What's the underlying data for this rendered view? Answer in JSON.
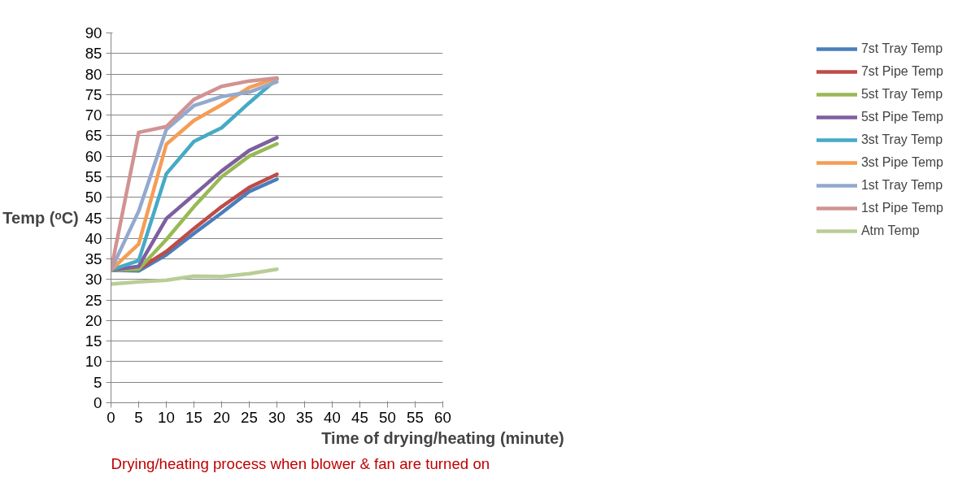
{
  "chart_data": {
    "type": "line",
    "xlabel": "Time of drying/heating (minute)",
    "ylabel": "Temp (ᵒC)",
    "annotations": [
      "Drying/heating process when blower & fan are turned on"
    ],
    "x": [
      0,
      5,
      10,
      15,
      20,
      25,
      30
    ],
    "series": [
      {
        "name": "7st Tray Temp",
        "color": "#4a7ebb",
        "values": [
          32.3,
          32.1,
          36,
          41.2,
          46.2,
          51.4,
          54.4
        ]
      },
      {
        "name": "7st Pipe Temp",
        "color": "#be4b48",
        "values": [
          32.3,
          32.5,
          36.8,
          42.4,
          47.7,
          52.4,
          55.6
        ]
      },
      {
        "name": "5st Tray Temp",
        "color": "#98b954",
        "values": [
          32.3,
          32.5,
          39.7,
          47.7,
          55,
          60,
          63
        ]
      },
      {
        "name": "5st Pipe Temp",
        "color": "#7d5fa0",
        "values": [
          32.3,
          33.2,
          44.8,
          50.6,
          56.4,
          61.4,
          64.5
        ]
      },
      {
        "name": "3st Tray Temp",
        "color": "#46aac5",
        "values": [
          32.3,
          34.6,
          55.7,
          63.6,
          66.9,
          73,
          78.8
        ]
      },
      {
        "name": "3st Pipe Temp",
        "color": "#f59d56",
        "values": [
          32.3,
          38.6,
          62.9,
          68.7,
          72.5,
          76.7,
          79
        ]
      },
      {
        "name": "1st Tray Temp",
        "color": "#93a9cf",
        "values": [
          32.3,
          46.6,
          66.5,
          72.3,
          74.5,
          75.6,
          78.1
        ]
      },
      {
        "name": "1st Pipe Temp",
        "color": "#d19392",
        "values": [
          32.3,
          65.8,
          67.2,
          73.8,
          77,
          78.3,
          79
        ]
      },
      {
        "name": "Atm Temp",
        "color": "#b9cd96",
        "values": [
          28.9,
          29.4,
          29.8,
          30.8,
          30.7,
          31.4,
          32.5
        ]
      }
    ],
    "xlim": [
      0,
      60
    ],
    "xticks": [
      0,
      5,
      10,
      15,
      20,
      25,
      30,
      35,
      40,
      45,
      50,
      55,
      60
    ],
    "ylim": [
      0,
      90
    ],
    "yticks": [
      0,
      5,
      10,
      15,
      20,
      25,
      30,
      35,
      40,
      45,
      50,
      55,
      60,
      65,
      70,
      75,
      80,
      85,
      90
    ],
    "grid": "y",
    "legend": "right",
    "marker": "none",
    "line_style": "solid"
  }
}
